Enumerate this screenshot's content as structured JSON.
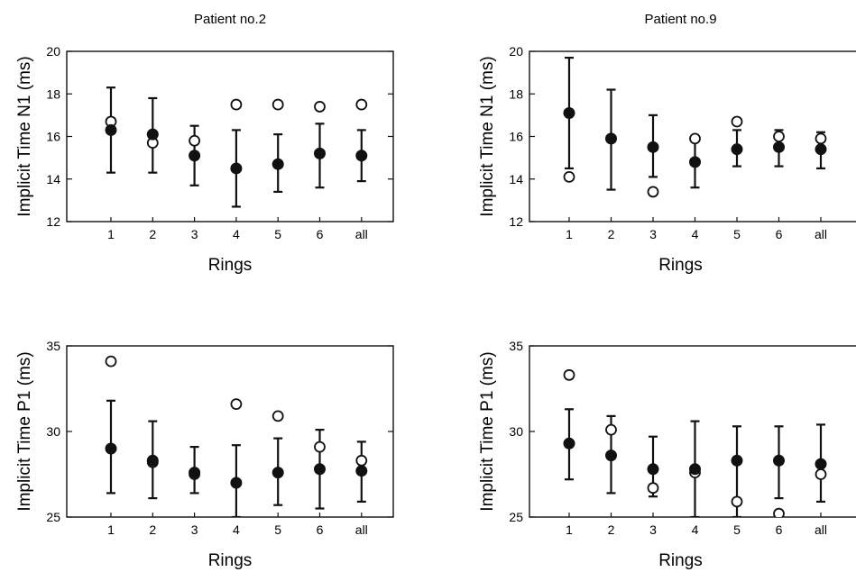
{
  "chart_data": [
    {
      "type": "scatter",
      "title": "Patient no.2",
      "xlabel": "Rings",
      "ylabel": "Implicit Time N1 (ms)",
      "categories": [
        "1",
        "2",
        "3",
        "4",
        "5",
        "6",
        "all"
      ],
      "ylim": [
        12,
        20
      ],
      "yticks": [
        "12",
        "14",
        "16",
        "18",
        "20"
      ],
      "series": [
        {
          "marker": "filled-circle",
          "values": [
            16.3,
            16.1,
            15.1,
            14.5,
            14.7,
            15.2,
            15.1
          ],
          "error_low": [
            14.3,
            14.3,
            13.7,
            12.7,
            13.4,
            13.6,
            13.9
          ],
          "error_high": [
            18.3,
            17.8,
            16.5,
            16.3,
            16.1,
            16.6,
            16.3
          ]
        },
        {
          "marker": "open-circle",
          "values": [
            16.7,
            15.7,
            15.8,
            17.5,
            17.5,
            17.4,
            17.5
          ]
        }
      ]
    },
    {
      "type": "scatter",
      "title": "Patient no.9",
      "xlabel": "Rings",
      "ylabel": "Implicit Time N1 (ms)",
      "categories": [
        "1",
        "2",
        "3",
        "4",
        "5",
        "6",
        "all"
      ],
      "ylim": [
        12,
        20
      ],
      "yticks": [
        "12",
        "14",
        "16",
        "18",
        "20"
      ],
      "series": [
        {
          "marker": "filled-circle",
          "values": [
            17.1,
            15.9,
            15.5,
            14.8,
            15.4,
            15.5,
            15.4
          ],
          "error_low": [
            14.5,
            13.5,
            14.1,
            13.6,
            14.6,
            14.6,
            14.5
          ],
          "error_high": [
            19.7,
            18.2,
            17.0,
            16.0,
            16.3,
            16.3,
            16.2
          ]
        },
        {
          "marker": "open-circle",
          "values": [
            14.1,
            null,
            13.4,
            15.9,
            16.7,
            16.0,
            15.9
          ]
        }
      ]
    },
    {
      "type": "scatter",
      "title": "",
      "xlabel": "Rings",
      "ylabel": "Implicit Time P1 (ms)",
      "categories": [
        "1",
        "2",
        "3",
        "4",
        "5",
        "6",
        "all"
      ],
      "ylim": [
        25,
        35
      ],
      "yticks": [
        "25",
        "30",
        "35"
      ],
      "series": [
        {
          "marker": "filled-circle",
          "values": [
            29.0,
            28.3,
            27.6,
            27.0,
            27.6,
            27.8,
            27.7
          ],
          "error_low": [
            26.4,
            26.1,
            26.4,
            25.0,
            25.7,
            25.5,
            25.9
          ],
          "error_high": [
            31.8,
            30.6,
            29.1,
            29.2,
            29.6,
            30.1,
            29.4
          ]
        },
        {
          "marker": "open-circle",
          "values": [
            34.1,
            28.2,
            27.5,
            31.6,
            30.9,
            29.1,
            28.3
          ]
        }
      ]
    },
    {
      "type": "scatter",
      "title": "",
      "xlabel": "Rings",
      "ylabel": "Implicit Time P1 (ms)",
      "categories": [
        "1",
        "2",
        "3",
        "4",
        "5",
        "6",
        "all"
      ],
      "ylim": [
        25,
        35
      ],
      "yticks": [
        "25",
        "30",
        "35"
      ],
      "series": [
        {
          "marker": "filled-circle",
          "values": [
            29.3,
            28.6,
            27.8,
            27.8,
            28.3,
            28.3,
            28.1
          ],
          "error_low": [
            27.2,
            26.4,
            26.2,
            25.0,
            25.0,
            26.1,
            25.9
          ],
          "error_high": [
            31.3,
            30.9,
            29.7,
            30.6,
            30.3,
            30.3,
            30.4
          ]
        },
        {
          "marker": "open-circle",
          "values": [
            33.3,
            30.1,
            26.7,
            27.6,
            25.9,
            25.2,
            27.5
          ]
        }
      ]
    }
  ]
}
